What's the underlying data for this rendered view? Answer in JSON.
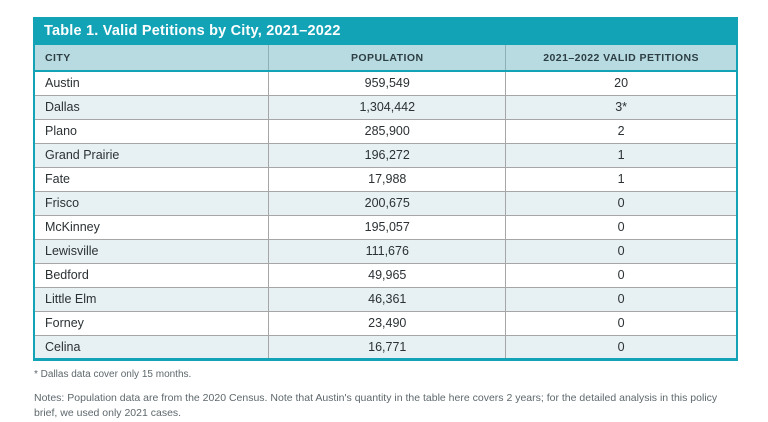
{
  "table": {
    "title": "Table 1. Valid Petitions by City, 2021–2022",
    "columns": [
      "CITY",
      "POPULATION",
      "2021–2022 VALID PETITIONS"
    ],
    "rows": [
      {
        "city": "Austin",
        "population": "959,549",
        "petitions": "20"
      },
      {
        "city": "Dallas",
        "population": "1,304,442",
        "petitions": "3*"
      },
      {
        "city": "Plano",
        "population": "285,900",
        "petitions": "2"
      },
      {
        "city": "Grand Prairie",
        "population": "196,272",
        "petitions": "1"
      },
      {
        "city": "Fate",
        "population": "17,988",
        "petitions": "1"
      },
      {
        "city": "Frisco",
        "population": "200,675",
        "petitions": "0"
      },
      {
        "city": "McKinney",
        "population": "195,057",
        "petitions": "0"
      },
      {
        "city": "Lewisville",
        "population": "111,676",
        "petitions": "0"
      },
      {
        "city": "Bedford",
        "population": "49,965",
        "petitions": "0"
      },
      {
        "city": "Little Elm",
        "population": "46,361",
        "petitions": "0"
      },
      {
        "city": "Forney",
        "population": "23,490",
        "petitions": "0"
      },
      {
        "city": "Celina",
        "population": "16,771",
        "petitions": "0"
      }
    ]
  },
  "footnotes": {
    "asterisk": "* Dallas data cover only 15 months.",
    "notes": "Notes: Population data are from the 2020 Census. Note that Austin's quantity in the table here covers 2 years; for the detailed analysis in this policy brief, we used only 2021 cases."
  },
  "colors": {
    "teal": "#12a3b7",
    "header_bg": "#b7dbe1",
    "row_alt_bg": "#e7f1f4",
    "text_dark": "#2b3134",
    "footnote_gray": "#5e686c"
  }
}
